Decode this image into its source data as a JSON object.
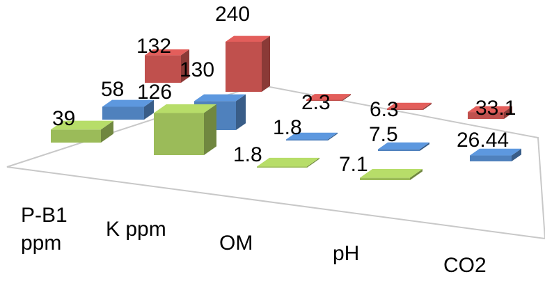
{
  "chart_data": {
    "type": "bar",
    "categories": [
      "P-B1\nppm",
      "K ppm",
      "OM",
      "pH",
      "CO2"
    ],
    "series": [
      {
        "values": [
          132,
          240,
          2.3,
          6.3,
          33.1
        ],
        "color": "#c0504d"
      },
      {
        "values": [
          58,
          130,
          1.8,
          7.5,
          26.44
        ],
        "color": "#4f81bd"
      },
      {
        "values": [
          39,
          126,
          1.8,
          7.1,
          null
        ],
        "color": "#9bbb59"
      }
    ],
    "data_labels": [
      [
        "132",
        "240",
        "2.3",
        "6.3",
        "33.1"
      ],
      [
        "58",
        "130",
        "1.8",
        "7.5",
        "26.44"
      ],
      [
        "39",
        "126",
        "1.8",
        "7.1",
        ""
      ]
    ],
    "legend": "none",
    "grid": false
  }
}
